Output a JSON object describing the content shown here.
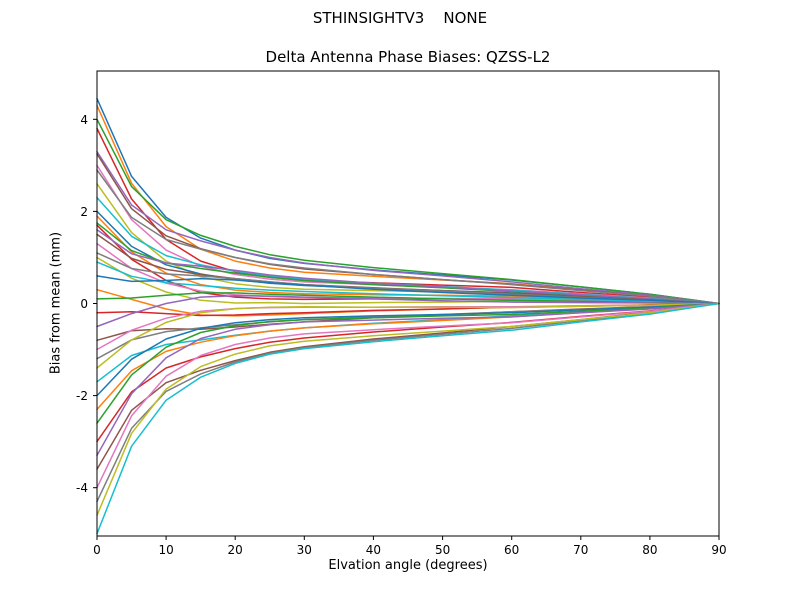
{
  "figure": {
    "suptitle": "STHINSIGHTV3    NONE",
    "title": "Delta Antenna Phase Biases: QZSS-L2",
    "xlabel": "Elvation angle (degrees)",
    "ylabel": "Bias from mean (mm)"
  },
  "chart_data": {
    "type": "line",
    "suptitle": "STHINSIGHTV3    NONE",
    "title": "Delta Antenna Phase Biases: QZSS-L2",
    "xlabel": "Elvation angle (degrees)",
    "ylabel": "Bias from mean (mm)",
    "xlim": [
      0,
      90
    ],
    "ylim": [
      -5.05,
      5.05
    ],
    "xticks": [
      0,
      10,
      20,
      30,
      40,
      50,
      60,
      70,
      80,
      90
    ],
    "yticks": [
      -4,
      -2,
      0,
      2,
      4
    ],
    "grid": false,
    "legend": "none",
    "line_width": 1.5,
    "colors": [
      "#1f77b4",
      "#ff7f0e",
      "#2ca02c",
      "#d62728",
      "#9467bd",
      "#8c564b",
      "#e377c2",
      "#7f7f7f",
      "#bcbd22",
      "#17becf"
    ],
    "x": [
      0,
      5,
      10,
      15,
      20,
      25,
      30,
      40,
      50,
      60,
      70,
      80,
      90
    ],
    "series": [
      [
        4.45,
        2.76,
        1.87,
        1.42,
        1.16,
        0.98,
        0.87,
        0.73,
        0.62,
        0.51,
        0.36,
        0.2,
        0
      ],
      [
        4.3,
        2.61,
        1.67,
        1.18,
        0.92,
        0.77,
        0.68,
        0.59,
        0.51,
        0.43,
        0.3,
        0.17,
        0
      ],
      [
        4.0,
        2.54,
        1.82,
        1.48,
        1.24,
        1.06,
        0.94,
        0.78,
        0.65,
        0.52,
        0.36,
        0.2,
        0
      ],
      [
        3.8,
        2.27,
        1.39,
        0.92,
        0.69,
        0.57,
        0.5,
        0.45,
        0.4,
        0.35,
        0.24,
        0.14,
        0
      ],
      [
        3.3,
        2.14,
        1.6,
        1.36,
        1.16,
        1.0,
        0.88,
        0.72,
        0.6,
        0.47,
        0.32,
        0.18,
        0
      ],
      [
        3.25,
        2.06,
        1.47,
        1.19,
        1.0,
        0.85,
        0.75,
        0.63,
        0.52,
        0.42,
        0.29,
        0.16,
        0
      ],
      [
        3.0,
        1.82,
        1.16,
        0.81,
        0.63,
        0.53,
        0.47,
        0.41,
        0.35,
        0.3,
        0.21,
        0.12,
        0
      ],
      [
        2.9,
        1.87,
        1.39,
        1.18,
        1.0,
        0.86,
        0.77,
        0.63,
        0.52,
        0.41,
        0.28,
        0.16,
        0
      ],
      [
        2.6,
        1.54,
        0.92,
        0.58,
        0.43,
        0.35,
        0.31,
        0.28,
        0.25,
        0.22,
        0.16,
        0.09,
        0
      ],
      [
        2.3,
        1.46,
        1.04,
        0.84,
        0.7,
        0.6,
        0.53,
        0.44,
        0.37,
        0.29,
        0.2,
        0.11,
        0
      ],
      [
        2.0,
        1.24,
        0.84,
        0.64,
        0.52,
        0.44,
        0.39,
        0.33,
        0.28,
        0.23,
        0.16,
        0.09,
        0
      ],
      [
        1.9,
        1.12,
        0.66,
        0.41,
        0.29,
        0.24,
        0.21,
        0.19,
        0.18,
        0.16,
        0.11,
        0.07,
        0
      ],
      [
        1.75,
        1.15,
        0.88,
        0.76,
        0.66,
        0.57,
        0.5,
        0.41,
        0.34,
        0.26,
        0.18,
        0.1,
        0
      ],
      [
        1.7,
        0.96,
        0.5,
        0.24,
        0.14,
        0.1,
        0.09,
        0.1,
        0.1,
        0.11,
        0.08,
        0.05,
        0
      ],
      [
        1.6,
        1.08,
        0.88,
        0.81,
        0.72,
        0.62,
        0.55,
        0.44,
        0.36,
        0.27,
        0.19,
        0.1,
        0
      ],
      [
        1.5,
        0.98,
        0.74,
        0.63,
        0.54,
        0.47,
        0.41,
        0.34,
        0.28,
        0.22,
        0.15,
        0.08,
        0
      ],
      [
        1.3,
        0.76,
        0.44,
        0.27,
        0.19,
        0.15,
        0.13,
        0.12,
        0.11,
        0.1,
        0.07,
        0.05,
        0
      ],
      [
        1.1,
        0.76,
        0.64,
        0.6,
        0.54,
        0.47,
        0.41,
        0.33,
        0.27,
        0.2,
        0.13,
        0.07,
        0
      ],
      [
        1.0,
        0.55,
        0.25,
        0.07,
        0.01,
        0.02,
        0.0,
        0.02,
        0.03,
        0.05,
        0.03,
        0.03,
        0
      ],
      [
        0.9,
        0.59,
        0.45,
        0.39,
        0.33,
        0.29,
        0.26,
        0.21,
        0.17,
        0.13,
        0.09,
        0.05,
        0
      ],
      [
        0.6,
        0.48,
        0.5,
        0.54,
        0.51,
        0.45,
        0.4,
        0.31,
        0.24,
        0.18,
        0.12,
        0.07,
        0
      ],
      [
        0.3,
        0.09,
        -0.12,
        -0.25,
        -0.27,
        -0.25,
        -0.22,
        -0.16,
        -0.12,
        -0.08,
        -0.05,
        -0.03,
        0
      ],
      [
        0.1,
        0.12,
        0.18,
        0.23,
        0.23,
        0.2,
        0.18,
        0.14,
        0.1,
        0.07,
        0.05,
        0.02,
        0
      ],
      [
        -0.2,
        -0.18,
        -0.22,
        -0.26,
        -0.25,
        -0.22,
        -0.2,
        -0.15,
        -0.12,
        -0.08,
        -0.06,
        -0.03,
        0
      ],
      [
        -0.5,
        -0.22,
        0.0,
        0.14,
        0.17,
        0.16,
        0.14,
        0.1,
        0.06,
        0.03,
        0.02,
        0.01,
        0
      ],
      [
        -0.8,
        -0.59,
        -0.55,
        -0.56,
        -0.51,
        -0.45,
        -0.4,
        -0.31,
        -0.25,
        -0.18,
        -0.12,
        -0.07,
        0
      ],
      [
        -1.0,
        -0.58,
        -0.32,
        -0.17,
        -0.11,
        -0.09,
        -0.08,
        -0.08,
        -0.07,
        -0.07,
        -0.05,
        -0.04,
        0
      ],
      [
        -1.2,
        -0.79,
        -0.61,
        -0.53,
        -0.46,
        -0.4,
        -0.35,
        -0.29,
        -0.24,
        -0.18,
        -0.13,
        -0.07,
        0
      ],
      [
        -1.4,
        -0.79,
        -0.41,
        -0.2,
        -0.11,
        -0.08,
        -0.07,
        -0.08,
        -0.08,
        -0.09,
        -0.06,
        -0.04,
        0
      ],
      [
        -1.7,
        -1.13,
        -0.89,
        -0.79,
        -0.69,
        -0.6,
        -0.53,
        -0.43,
        -0.35,
        -0.27,
        -0.19,
        -0.1,
        0
      ],
      [
        -2.0,
        -1.21,
        -0.77,
        -0.54,
        -0.42,
        -0.35,
        -0.31,
        -0.27,
        -0.24,
        -0.2,
        -0.14,
        -0.08,
        0
      ],
      [
        -2.3,
        -1.46,
        -1.04,
        -0.84,
        -0.7,
        -0.6,
        -0.53,
        -0.44,
        -0.37,
        -0.29,
        -0.2,
        -0.11,
        0
      ],
      [
        -2.6,
        -1.55,
        -0.95,
        -0.63,
        -0.48,
        -0.39,
        -0.35,
        -0.31,
        -0.27,
        -0.24,
        -0.17,
        -0.1,
        0
      ],
      [
        -3.0,
        -1.92,
        -1.4,
        -1.16,
        -0.98,
        -0.84,
        -0.75,
        -0.62,
        -0.51,
        -0.41,
        -0.28,
        -0.16,
        0
      ],
      [
        -3.3,
        -1.96,
        -1.18,
        -0.76,
        -0.56,
        -0.46,
        -0.4,
        -0.36,
        -0.32,
        -0.29,
        -0.2,
        -0.12,
        0
      ],
      [
        -3.6,
        -2.32,
        -1.72,
        -1.45,
        -1.24,
        -1.06,
        -0.94,
        -0.77,
        -0.64,
        -0.5,
        -0.35,
        -0.19,
        0
      ],
      [
        -4.0,
        -2.44,
        -1.58,
        -1.13,
        -0.89,
        -0.75,
        -0.66,
        -0.57,
        -0.49,
        -0.42,
        -0.29,
        -0.17,
        0
      ],
      [
        -4.3,
        -2.71,
        -1.91,
        -1.53,
        -1.27,
        -1.08,
        -0.96,
        -0.8,
        -0.67,
        -0.54,
        -0.37,
        -0.21,
        0
      ],
      [
        -4.6,
        -2.82,
        -1.86,
        -1.37,
        -1.1,
        -0.92,
        -0.82,
        -0.7,
        -0.6,
        -0.5,
        -0.35,
        -0.2,
        0
      ],
      [
        -5.0,
        -3.1,
        -2.1,
        -1.6,
        -1.3,
        -1.1,
        -0.98,
        -0.83,
        -0.7,
        -0.58,
        -0.4,
        -0.23,
        0
      ]
    ]
  }
}
